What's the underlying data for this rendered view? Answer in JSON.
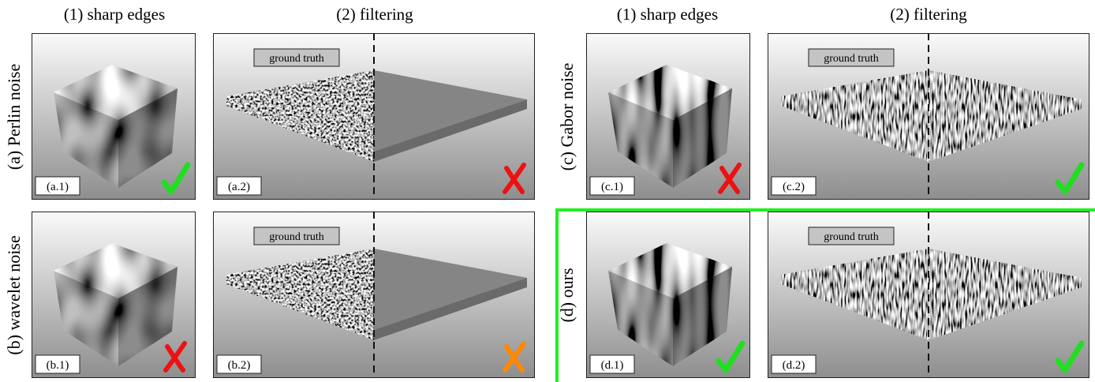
{
  "headers": [
    "(1) sharp edges",
    "(2) filtering",
    "(1) sharp edges",
    "(2) filtering"
  ],
  "rows": [
    {
      "label": "(a) Perlin noise",
      "panels": [
        "(a.1)",
        "(a.2)"
      ],
      "ground_truth": "ground truth"
    },
    {
      "label": "(b) wavelet noise",
      "panels": [
        "(b.1)",
        "(b.2)"
      ],
      "ground_truth": "ground truth"
    },
    {
      "label": "(c) Gabor noise",
      "panels": [
        "(c.1)",
        "(c.2)"
      ],
      "ground_truth": "ground truth"
    },
    {
      "label": "(d) ours",
      "panels": [
        "(d.1)",
        "(d.2)"
      ],
      "ground_truth": "ground truth"
    }
  ]
}
